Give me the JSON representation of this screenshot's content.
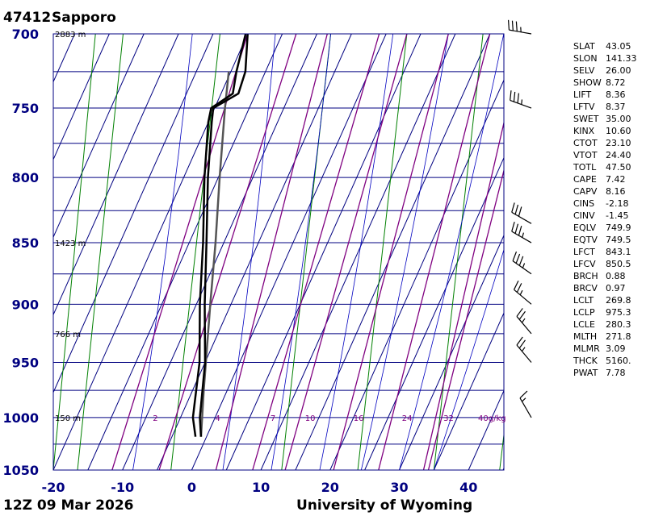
{
  "header": {
    "station": "47412",
    "name": "Sapporo",
    "time": "12Z 09 Mar 2026",
    "credit": "University of Wyoming"
  },
  "colors": {
    "grid": "#000080",
    "dry_adiabat": "#008000",
    "moist_adiabat": "#0000c0",
    "mixing_ratio": "#800080",
    "temperature": "#000000",
    "dewpoint": "#000000",
    "parcel": "#555555",
    "axis_label": "#000080"
  },
  "chart_data": {
    "type": "skew-t",
    "pressure_ticks": [
      700,
      750,
      800,
      850,
      900,
      950,
      1000,
      1050
    ],
    "pressure_tick_labels": [
      "700",
      "750",
      "800",
      "850",
      "900",
      "950",
      "1000",
      "1050"
    ],
    "temperature_ticks": [
      -20,
      -10,
      0,
      10,
      20,
      30,
      40
    ],
    "temperature_tick_labels": [
      "-20",
      "-10",
      "0",
      "10",
      "20",
      "30",
      "40"
    ],
    "plim": [
      700,
      1050
    ],
    "tlim_bottom": [
      -20,
      45
    ],
    "height_labels": [
      {
        "p": 700,
        "text": "2883 m"
      },
      {
        "p": 850,
        "text": "1423 m"
      },
      {
        "p": 925,
        "text": "766 m"
      },
      {
        "p": 1000,
        "text": "150 m"
      }
    ],
    "mixing_ratio_labels": [
      {
        "t": -9,
        "text": "2"
      },
      {
        "t": 0,
        "text": "4"
      },
      {
        "t": 8,
        "text": "7"
      },
      {
        "t": 13,
        "text": "10"
      },
      {
        "t": 20,
        "text": "16"
      },
      {
        "t": 27,
        "text": "24"
      },
      {
        "t": 33,
        "text": "32"
      },
      {
        "t": 38,
        "text": "40g/kg"
      }
    ],
    "mixing_ratio_lines": [
      {
        "t_bottom": -11.5,
        "t_top": -20
      },
      {
        "t_bottom": -4.7,
        "t_top": -13
      },
      {
        "t_bottom": 3.5,
        "t_top": -8.5
      },
      {
        "t_bottom": 8.8,
        "t_top": -1
      },
      {
        "t_bottom": 13.5,
        "t_top": 3
      },
      {
        "t_bottom": 20.5,
        "t_top": 9
      },
      {
        "t_bottom": 27,
        "t_top": 15
      },
      {
        "t_bottom": 33.5,
        "t_top": 20
      },
      {
        "t_bottom": 34.2,
        "t_top": 22
      }
    ],
    "dry_adiabats": [
      {
        "t1050": -20,
        "t700": -42
      },
      {
        "t1050": -16.5,
        "t700": -38
      },
      {
        "t1050": -3,
        "t700": -24
      },
      {
        "t1050": 13,
        "t700": -8
      },
      {
        "t1050": 24,
        "t700": 3
      },
      {
        "t1050": 35,
        "t700": 14
      },
      {
        "t1050": 44.5,
        "t700": 24
      },
      {
        "t1050": 52,
        "t700": 33
      }
    ],
    "moist_adiabats": [
      {
        "t1050": -8.5,
        "t700": -28
      },
      {
        "t1050": 4.5,
        "t700": -16
      },
      {
        "t1050": 11.5,
        "t700": -8
      },
      {
        "t1050": 18.5,
        "t700": 1
      },
      {
        "t1050": 24.5,
        "t700": 9
      },
      {
        "t1050": 30,
        "t700": 17
      },
      {
        "t1050": 35,
        "t700": 26
      }
    ],
    "temperature_profile": [
      {
        "p": 1018,
        "t": -0.8
      },
      {
        "p": 1000,
        "t": -2.2
      },
      {
        "p": 950,
        "t": -5.0
      },
      {
        "p": 900,
        "t": -8.8
      },
      {
        "p": 850,
        "t": -12.5
      },
      {
        "p": 800,
        "t": -16.5
      },
      {
        "p": 760,
        "t": -19.5
      },
      {
        "p": 750,
        "t": -20.2
      },
      {
        "p": 740,
        "t": -17.5
      },
      {
        "p": 725,
        "t": -17.9
      },
      {
        "p": 700,
        "t": -20.0
      }
    ],
    "dewpoint_profile": [
      {
        "p": 1018,
        "t": -1.6
      },
      {
        "p": 1000,
        "t": -3.2
      },
      {
        "p": 950,
        "t": -5.8
      },
      {
        "p": 900,
        "t": -9.5
      },
      {
        "p": 850,
        "t": -13.0
      },
      {
        "p": 800,
        "t": -17.0
      },
      {
        "p": 760,
        "t": -20.0
      },
      {
        "p": 750,
        "t": -20.5
      },
      {
        "p": 740,
        "t": -18.3
      },
      {
        "p": 725,
        "t": -19.2
      },
      {
        "p": 700,
        "t": -20.3
      }
    ],
    "parcel_path": [
      {
        "p": 1018,
        "t": -0.8
      },
      {
        "p": 975,
        "t": -3.4
      },
      {
        "p": 900,
        "t": -8.0
      },
      {
        "p": 850,
        "t": -11.2
      },
      {
        "p": 800,
        "t": -14.8
      },
      {
        "p": 750,
        "t": -18.5
      },
      {
        "p": 725,
        "t": -20.3
      }
    ],
    "wind_barbs": [
      {
        "p": 700,
        "dir": 280,
        "speed": 35
      },
      {
        "p": 750,
        "dir": 290,
        "speed": 35
      },
      {
        "p": 835,
        "dir": 300,
        "speed": 30
      },
      {
        "p": 850,
        "dir": 300,
        "speed": 35
      },
      {
        "p": 875,
        "dir": 305,
        "speed": 35
      },
      {
        "p": 900,
        "dir": 310,
        "speed": 25
      },
      {
        "p": 925,
        "dir": 320,
        "speed": 25
      },
      {
        "p": 950,
        "dir": 320,
        "speed": 25
      },
      {
        "p": 1000,
        "dir": 330,
        "speed": 15
      }
    ]
  },
  "indices": [
    {
      "key": "SLAT",
      "value": "43.05"
    },
    {
      "key": "SLON",
      "value": "141.33"
    },
    {
      "key": "SELV",
      "value": "26.00"
    },
    {
      "key": "SHOW",
      "value": "8.72"
    },
    {
      "key": "LIFT",
      "value": "8.36"
    },
    {
      "key": "LFTV",
      "value": "8.37"
    },
    {
      "key": "SWET",
      "value": "35.00"
    },
    {
      "key": "KINX",
      "value": "10.60"
    },
    {
      "key": "CTOT",
      "value": "23.10"
    },
    {
      "key": "VTOT",
      "value": "24.40"
    },
    {
      "key": "TOTL",
      "value": "47.50"
    },
    {
      "key": "CAPE",
      "value": "7.42"
    },
    {
      "key": "CAPV",
      "value": "8.16"
    },
    {
      "key": "CINS",
      "value": "-2.18"
    },
    {
      "key": "CINV",
      "value": "-1.45"
    },
    {
      "key": "EQLV",
      "value": "749.9"
    },
    {
      "key": "EQTV",
      "value": "749.5"
    },
    {
      "key": "LFCT",
      "value": "843.1"
    },
    {
      "key": "LFCV",
      "value": "850.5"
    },
    {
      "key": "BRCH",
      "value": "0.88"
    },
    {
      "key": "BRCV",
      "value": "0.97"
    },
    {
      "key": "LCLT",
      "value": "269.8"
    },
    {
      "key": "LCLP",
      "value": "975.3"
    },
    {
      "key": "LCLE",
      "value": "280.3"
    },
    {
      "key": "MLTH",
      "value": "271.8"
    },
    {
      "key": "MLMR",
      "value": "3.09"
    },
    {
      "key": "THCK",
      "value": "5160."
    },
    {
      "key": "PWAT",
      "value": "7.78"
    }
  ]
}
